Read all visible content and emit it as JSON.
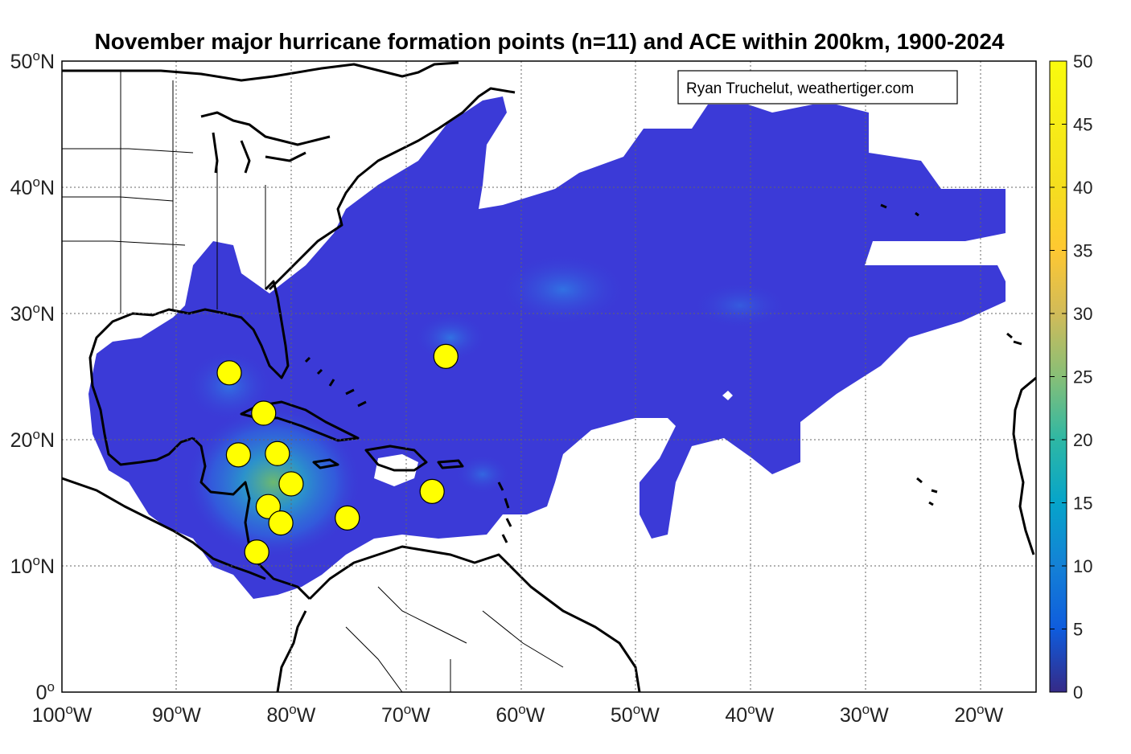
{
  "title": "November major hurricane formation points (n=11) and ACE within 200km, 1900-2024",
  "credit": "Ryan Truchelut, weathertiger.com",
  "colors": {
    "ocean_fill": "#3a3ad6",
    "field_high": "#f5d020",
    "marker_fill": "#ffff00",
    "marker_stroke": "#000000",
    "coast": "#000000",
    "grid": "#555555"
  },
  "axes": {
    "x_ticks": [
      {
        "deg": "100",
        "hemi": "W"
      },
      {
        "deg": "90",
        "hemi": "W"
      },
      {
        "deg": "80",
        "hemi": "W"
      },
      {
        "deg": "70",
        "hemi": "W"
      },
      {
        "deg": "60",
        "hemi": "W"
      },
      {
        "deg": "50",
        "hemi": "W"
      },
      {
        "deg": "40",
        "hemi": "W"
      },
      {
        "deg": "30",
        "hemi": "W"
      },
      {
        "deg": "20",
        "hemi": "W"
      }
    ],
    "y_ticks": [
      {
        "deg": "0",
        "hemi": ""
      },
      {
        "deg": "10",
        "hemi": "N"
      },
      {
        "deg": "20",
        "hemi": "N"
      },
      {
        "deg": "30",
        "hemi": "N"
      },
      {
        "deg": "40",
        "hemi": "N"
      },
      {
        "deg": "50",
        "hemi": "N"
      }
    ],
    "x_range": [
      -100,
      -15
    ],
    "y_range": [
      0,
      50
    ],
    "degree_symbol": "o"
  },
  "colorbar": {
    "ticks": [
      "0",
      "5",
      "10",
      "15",
      "20",
      "25",
      "30",
      "35",
      "40",
      "45",
      "50"
    ],
    "range": [
      0,
      50
    ],
    "colormap": "parula"
  },
  "formation_points": [
    {
      "lon": -85.4,
      "lat": 25.3
    },
    {
      "lon": -82.4,
      "lat": 22.1
    },
    {
      "lon": -84.6,
      "lat": 18.8
    },
    {
      "lon": -81.2,
      "lat": 18.9
    },
    {
      "lon": -80.0,
      "lat": 16.5
    },
    {
      "lon": -82.0,
      "lat": 14.7
    },
    {
      "lon": -80.9,
      "lat": 13.4
    },
    {
      "lon": -75.1,
      "lat": 13.8
    },
    {
      "lon": -83.0,
      "lat": 11.1
    },
    {
      "lon": -67.7,
      "lat": 15.9
    },
    {
      "lon": -66.5,
      "lat": 26.6
    }
  ]
}
